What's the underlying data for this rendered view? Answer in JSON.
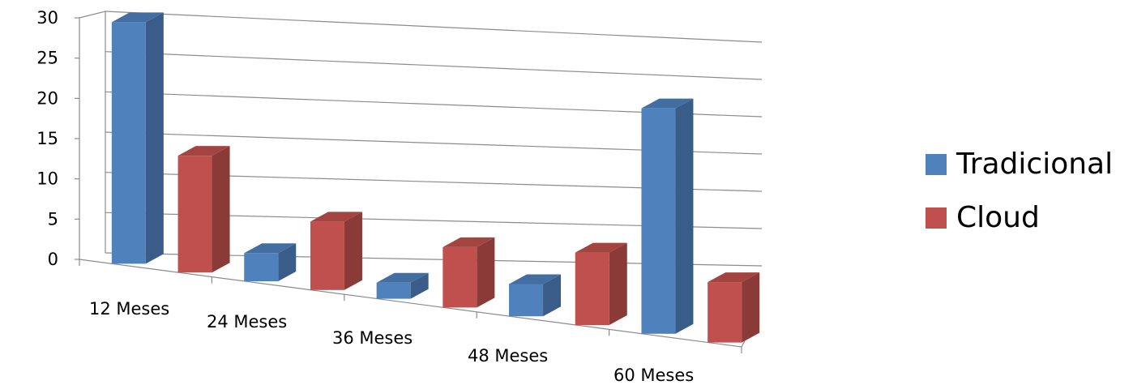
{
  "chart_data": {
    "type": "bar",
    "categories": [
      "12 Meses",
      "24 Meses",
      "36 Meses",
      "48 Meses",
      "60 Meses"
    ],
    "series": [
      {
        "name": "Tradicional",
        "color": "#4F81BD",
        "values": [
          30,
          3.5,
          2,
          4,
          28
        ]
      },
      {
        "name": "Cloud",
        "color": "#C0504D",
        "values": [
          14.5,
          8.5,
          7.5,
          9,
          7.5
        ]
      }
    ],
    "yticks": [
      "0",
      "5",
      "10",
      "15",
      "20",
      "25",
      "30"
    ],
    "ylim": [
      0,
      30
    ],
    "grid": true,
    "legend_position": "right",
    "style": "3d-clustered-column"
  }
}
